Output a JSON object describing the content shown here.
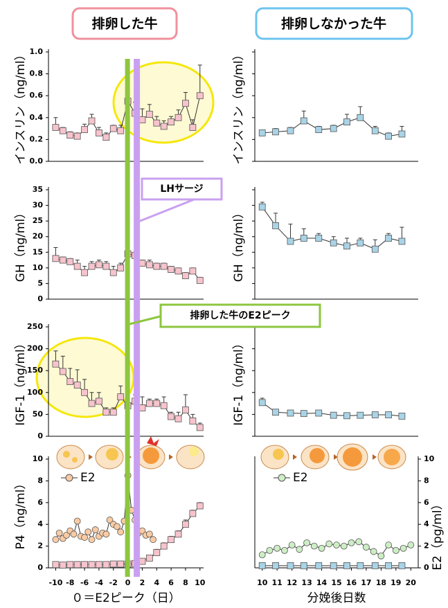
{
  "column_titles": [
    "排卵した牛",
    "排卵しなかった牛"
  ],
  "annotations": [
    {
      "text": "LHサージ",
      "x": 1.2,
      "color": "#c9a0f0"
    },
    {
      "text": "排卵した牛のE2ピーク",
      "x": 0,
      "color": "#8dc63f"
    }
  ],
  "chart_data": [
    {
      "type": "line",
      "ylabel": "インスリン（ng/ml）",
      "xlim": [
        -11,
        10.5
      ],
      "ylim": [
        0,
        1
      ],
      "yticks": [
        {
          "value": 0,
          "label": "0.0"
        },
        {
          "value": 0.2,
          "label": "0.2"
        },
        {
          "value": 0.4,
          "label": "0.4"
        },
        {
          "value": 0.6,
          "label": "0.6"
        },
        {
          "value": 0.8,
          "label": "0.8"
        },
        {
          "value": 1,
          "label": "1.0"
        }
      ],
      "series": [
        {
          "color": "#f7c3cc",
          "marker": "square",
          "x": [
            -10,
            -9,
            -8,
            -7,
            -6,
            -5,
            -4,
            -3,
            -2,
            -1,
            0,
            1,
            2,
            3,
            4,
            5,
            6,
            7,
            8,
            9,
            10
          ],
          "values": [
            0.31,
            0.28,
            0.24,
            0.23,
            0.29,
            0.37,
            0.26,
            0.22,
            0.3,
            0.28,
            0.55,
            0.44,
            0.38,
            0.43,
            0.35,
            0.32,
            0.36,
            0.4,
            0.53,
            0.31,
            0.6
          ],
          "errors": [
            0.09,
            0.03,
            0.03,
            0.03,
            0.05,
            0.06,
            0.05,
            0.04,
            0.03,
            0.05,
            0.12,
            0.1,
            0.1,
            0.09,
            0.06,
            0.05,
            0.05,
            0.07,
            0.1,
            0.07,
            0.28
          ]
        }
      ]
    },
    {
      "type": "line",
      "ylabel": "GH（ng/ml）",
      "xlim": [
        -11,
        10.5
      ],
      "ylim": [
        0,
        35
      ],
      "yticks": [
        0,
        5,
        10,
        15,
        20,
        25,
        30,
        35
      ],
      "series": [
        {
          "color": "#f7c3cc",
          "marker": "square",
          "x": [
            -10,
            -9,
            -8,
            -7,
            -6,
            -5,
            -4,
            -3,
            -2,
            -1,
            0,
            1,
            2,
            3,
            4,
            5,
            6,
            7,
            8,
            9,
            10
          ],
          "values": [
            13,
            12.5,
            12,
            10.5,
            8.5,
            10.5,
            11,
            10.5,
            8.5,
            10,
            14.5,
            14,
            11.5,
            11,
            10.5,
            10.5,
            9.5,
            9,
            7.5,
            9,
            6
          ],
          "errors": [
            3.5,
            1,
            1,
            2,
            2,
            1.5,
            1.5,
            1.5,
            2,
            1.5,
            1,
            1,
            1,
            1.5,
            1,
            1,
            1,
            1,
            1,
            1,
            1
          ]
        }
      ]
    },
    {
      "type": "line",
      "ylabel": "IGF-1（ng/ml）",
      "xlim": [
        -11,
        10.5
      ],
      "ylim": [
        0,
        250
      ],
      "yticks": [
        0,
        50,
        100,
        150,
        200,
        250
      ],
      "series": [
        {
          "color": "#f7c3cc",
          "marker": "square",
          "x": [
            -10,
            -9,
            -8,
            -7,
            -6,
            -5,
            -4,
            -3,
            -2,
            -1,
            0,
            1,
            2,
            3,
            4,
            5,
            6,
            7,
            8,
            9,
            10
          ],
          "values": [
            165,
            148,
            125,
            117,
            100,
            75,
            80,
            55,
            55,
            90,
            70,
            80,
            65,
            75,
            75,
            70,
            45,
            40,
            60,
            35,
            20
          ],
          "errors": [
            30,
            35,
            30,
            35,
            30,
            25,
            20,
            10,
            10,
            25,
            15,
            15,
            25,
            10,
            10,
            20,
            10,
            15,
            35,
            15,
            10
          ]
        }
      ]
    },
    {
      "type": "line",
      "ylabel": "P4（ng/ml）",
      "xlabel": "０＝E2ピーク（日）",
      "xlim": [
        -11,
        10.5
      ],
      "ylim": [
        0,
        10
      ],
      "yticks": [
        0,
        2,
        4,
        6,
        8,
        10
      ],
      "xticks": [
        -10,
        -8,
        -6,
        -4,
        -2,
        0,
        2,
        4,
        6,
        8,
        10
      ],
      "series": [
        {
          "color": "#f7c3cc",
          "marker": "square",
          "x": [
            -10,
            -9,
            -8,
            -7,
            -6,
            -5,
            -4,
            -3,
            -2,
            -1,
            0,
            1,
            2,
            3,
            4,
            5,
            6,
            7,
            8,
            9,
            10
          ],
          "values": [
            0.3,
            0.25,
            0.3,
            0.3,
            0.3,
            0.3,
            0.3,
            0.3,
            0.35,
            0.35,
            0.35,
            0.4,
            0.6,
            0.9,
            1.4,
            2,
            2.6,
            3.1,
            4,
            5,
            5.7
          ],
          "errors": [
            0.1,
            0.1,
            0.1,
            0.1,
            0.1,
            0.1,
            0.1,
            0.1,
            0.1,
            0.1,
            0.1,
            0.1,
            0.2,
            0.2,
            0.3,
            0.3,
            0.3,
            0.3,
            0.4,
            0.3,
            0.3
          ]
        },
        {
          "name": "E2",
          "color": "#f9cba4",
          "marker": "circle",
          "x": [
            -10,
            -9.5,
            -9,
            -8.5,
            -8,
            -7.5,
            -7,
            -6.5,
            -6,
            -5.5,
            -5,
            -4.5,
            -4,
            -3.5,
            -3,
            -2.5,
            -2,
            -1.5,
            -1,
            -0.5,
            0,
            0.5,
            1,
            1.5,
            2,
            2.5,
            3,
            3.5
          ],
          "values": [
            2.6,
            3.2,
            2.7,
            3,
            3.4,
            3.1,
            4.3,
            2.9,
            2.8,
            3.3,
            2.6,
            3.5,
            2.9,
            3.2,
            3.1,
            4.4,
            4,
            3.8,
            3.3,
            4.3,
            8.5,
            5.3,
            4.4,
            3.2,
            3.4,
            3,
            3.1,
            2.6
          ]
        }
      ]
    },
    {
      "type": "line",
      "ylabel": "インスリン（ng/ml）",
      "xlim": [
        9.5,
        20.5
      ],
      "ylim": [
        0,
        1
      ],
      "show_tick_labels": false,
      "yticks": [
        0,
        0.2,
        0.4,
        0.6,
        0.8,
        1
      ],
      "series": [
        {
          "color": "#a9d3e6",
          "marker": "square",
          "x": [
            10,
            10.9,
            11.9,
            12.8,
            13.8,
            14.8,
            15.7,
            16.6,
            17.6,
            18.5,
            19.4
          ],
          "values": [
            0.26,
            0.27,
            0.28,
            0.37,
            0.29,
            0.3,
            0.36,
            0.4,
            0.28,
            0.23,
            0.25
          ],
          "errors": [
            0.02,
            0.03,
            0.03,
            0.09,
            0.03,
            0.03,
            0.07,
            0.1,
            0.04,
            0.03,
            0.07
          ]
        }
      ]
    },
    {
      "type": "line",
      "ylabel": "GH（ng/ml）",
      "xlim": [
        9.5,
        20.5
      ],
      "ylim": [
        0,
        35
      ],
      "show_tick_labels": false,
      "yticks": [
        0,
        5,
        10,
        15,
        20,
        25,
        30,
        35
      ],
      "series": [
        {
          "color": "#a9d3e6",
          "marker": "square",
          "x": [
            10,
            10.9,
            11.9,
            12.8,
            13.8,
            14.8,
            15.7,
            16.6,
            17.6,
            18.5,
            19.4
          ],
          "values": [
            29.5,
            23.5,
            18.5,
            19.5,
            19.5,
            18,
            17,
            18,
            16,
            19.5,
            18.5
          ],
          "errors": [
            1.5,
            4,
            5.5,
            3,
            1.5,
            2,
            2.5,
            1.5,
            3,
            1.5,
            4.5
          ]
        }
      ]
    },
    {
      "type": "line",
      "ylabel": "IGF-1（ng/ml）",
      "xlim": [
        9.5,
        20.5
      ],
      "ylim": [
        0,
        250
      ],
      "show_tick_labels": false,
      "yticks": [
        0,
        50,
        100,
        150,
        200,
        250
      ],
      "series": [
        {
          "color": "#a9d3e6",
          "marker": "square",
          "x": [
            10,
            10.9,
            11.9,
            12.8,
            13.8,
            14.8,
            15.7,
            16.6,
            17.6,
            18.5,
            19.4
          ],
          "values": [
            77,
            55,
            53,
            52,
            53,
            48,
            47,
            48,
            49,
            49,
            46
          ],
          "errors": [
            10,
            5,
            3,
            3,
            3,
            3,
            3,
            3,
            3,
            3,
            3
          ]
        }
      ]
    },
    {
      "type": "line",
      "xlabel": "分娩後日数",
      "y2label": "E2（pg/ml）",
      "xlim": [
        9.5,
        20.5
      ],
      "ylim": [
        0,
        10
      ],
      "show_tick_labels": false,
      "xticks": [
        10,
        11,
        12,
        13,
        14,
        15,
        16,
        17,
        18,
        19,
        20
      ],
      "y2lim": [
        0,
        10
      ],
      "y2ticks": [
        0,
        2,
        4,
        6,
        8,
        10
      ],
      "series": [
        {
          "color": "#a9d3e6",
          "marker": "square",
          "x": [
            10,
            10.9,
            11.9,
            12.8,
            13.8,
            14.8,
            15.7,
            16.6,
            17.6,
            18.5,
            19.4
          ],
          "values": [
            0.2,
            0.2,
            0.2,
            0.2,
            0.2,
            0.2,
            0.2,
            0.2,
            0.2,
            0.2,
            0.2
          ]
        },
        {
          "name": "E2",
          "color": "#cdeec4",
          "marker": "circle",
          "axis": "y2",
          "x": [
            10,
            10.5,
            11,
            11.5,
            12,
            12.5,
            13,
            13.5,
            14,
            14.5,
            15,
            15.5,
            16,
            16.5,
            17,
            17.5,
            18,
            18.5,
            19,
            19.5,
            20
          ],
          "values": [
            1.2,
            1.6,
            1.8,
            1.6,
            2.1,
            1.7,
            2.3,
            2,
            1.8,
            2.2,
            2.1,
            2,
            2.3,
            2.4,
            1.9,
            1.5,
            1.1,
            2.1,
            1.6,
            1.8,
            2.1
          ]
        }
      ]
    }
  ]
}
